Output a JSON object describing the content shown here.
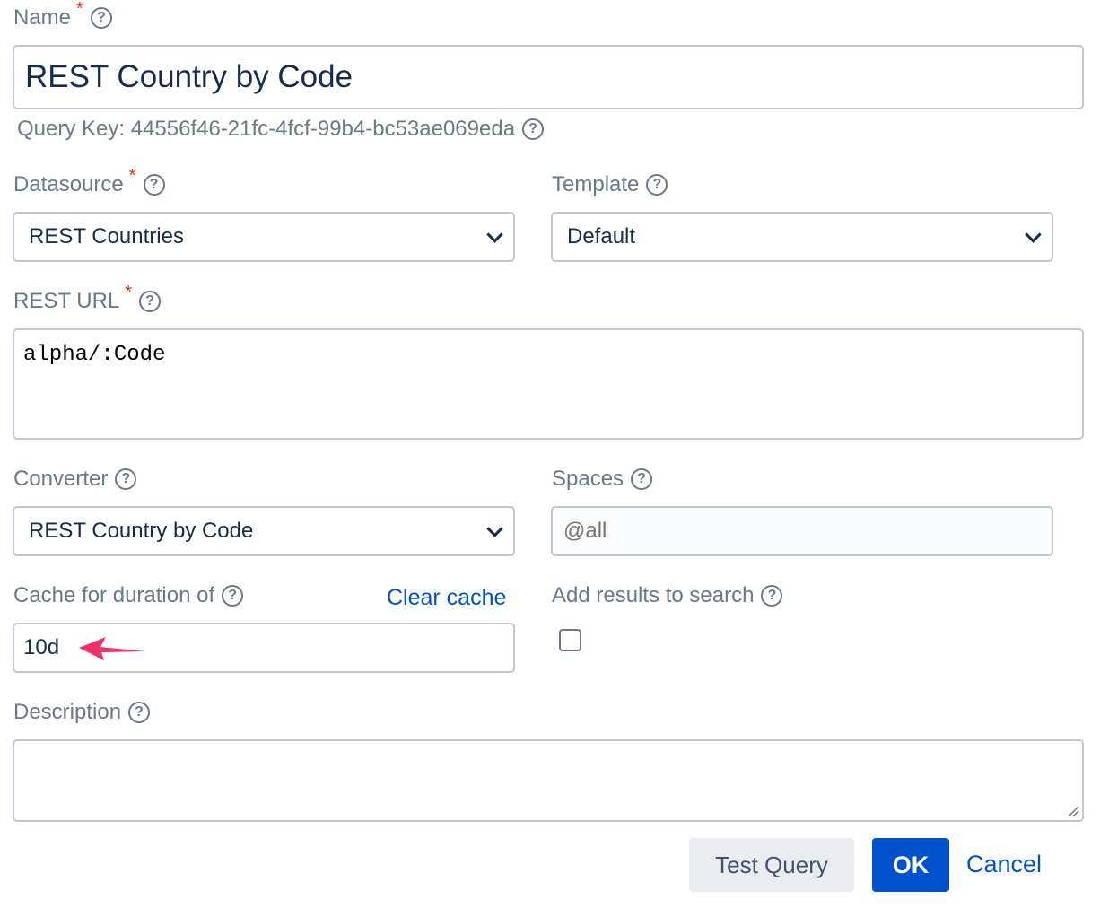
{
  "name": {
    "label": "Name",
    "value": "REST Country by Code",
    "query_key": "Query Key: 44556f46-21fc-4fcf-99b4-bc53ae069eda"
  },
  "datasource": {
    "label": "Datasource",
    "value": "REST Countries"
  },
  "template": {
    "label": "Template",
    "value": "Default"
  },
  "rest_url": {
    "label": "REST URL",
    "value": "alpha/:Code"
  },
  "converter": {
    "label": "Converter",
    "value": "REST Country by Code"
  },
  "spaces": {
    "label": "Spaces",
    "placeholder": "@all"
  },
  "cache": {
    "label": "Cache for duration of",
    "clear_label": "Clear cache",
    "value": "10d"
  },
  "add_results": {
    "label": "Add results to search",
    "checked": false
  },
  "description": {
    "label": "Description",
    "value": ""
  },
  "buttons": {
    "test": "Test Query",
    "ok": "OK",
    "cancel": "Cancel"
  },
  "colors": {
    "primary": "#0052cc",
    "required": "#de350b",
    "annotation_arrow": "#f0306a"
  }
}
